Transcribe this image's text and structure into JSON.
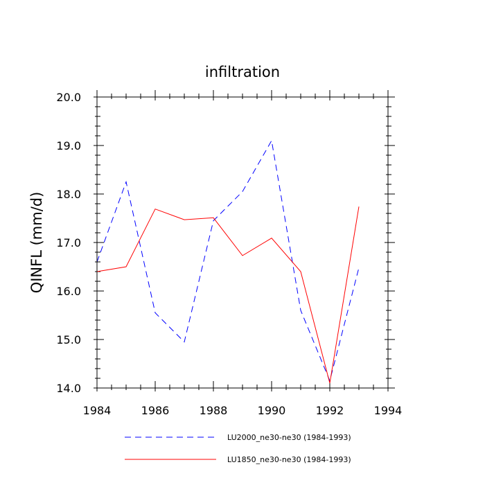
{
  "chart_data": {
    "type": "line",
    "title": "infiltration",
    "xlabel": "",
    "ylabel": "QINFL  (mm/d)",
    "xlim": [
      1984,
      1994
    ],
    "ylim": [
      14.0,
      20.0
    ],
    "x_ticks": [
      "1984",
      "1986",
      "1988",
      "1990",
      "1992",
      "1994"
    ],
    "y_ticks": [
      "14.0",
      "15.0",
      "16.0",
      "17.0",
      "18.0",
      "19.0",
      "20.0"
    ],
    "grid": false,
    "legend_position": "bottom",
    "series": [
      {
        "name": "LU2000_ne30-ne30 (1984-1993)",
        "color": "#0000ff",
        "dash": "dashed",
        "x": [
          1984,
          1985,
          1986,
          1987,
          1988,
          1989,
          1990,
          1991,
          1992,
          1993
        ],
        "y": [
          16.6,
          18.25,
          15.55,
          14.95,
          17.45,
          18.05,
          19.1,
          15.6,
          14.15,
          16.48
        ]
      },
      {
        "name": "LU1850_ne30-ne30 (1984-1993)",
        "color": "#ff0000",
        "dash": "solid",
        "x": [
          1984,
          1985,
          1986,
          1987,
          1988,
          1989,
          1990,
          1991,
          1992,
          1993
        ],
        "y": [
          16.4,
          16.5,
          17.69,
          17.47,
          17.51,
          16.73,
          17.09,
          16.4,
          14.1,
          17.74
        ]
      }
    ]
  }
}
